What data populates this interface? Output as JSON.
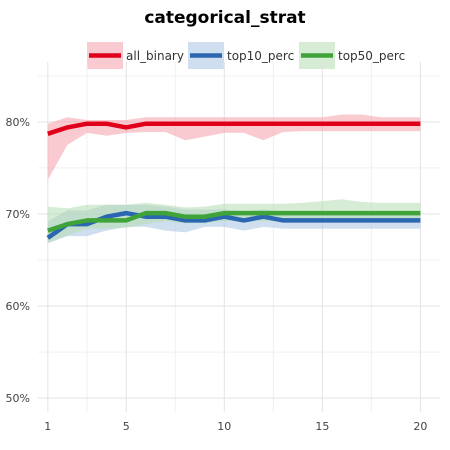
{
  "chart_data": {
    "type": "line",
    "title": "categorical_strat",
    "xlabel": "",
    "ylabel": "",
    "x": [
      1,
      2,
      3,
      4,
      5,
      6,
      7,
      8,
      9,
      10,
      11,
      12,
      13,
      14,
      15,
      16,
      17,
      18,
      19,
      20
    ],
    "xticks": [
      1,
      5,
      10,
      15,
      20
    ],
    "xlim": [
      0.5,
      21
    ],
    "ylim": [
      48.5,
      86.5
    ],
    "yticks": [
      50,
      60,
      70,
      80
    ],
    "ytick_labels": [
      "50%",
      "60%",
      "70%",
      "80%"
    ],
    "grid": true,
    "legend_position": "top",
    "series": [
      {
        "name": "all_binary",
        "color": "#e0001b",
        "band_color": "#f4a0aa",
        "values": [
          78.7,
          79.4,
          79.8,
          79.8,
          79.4,
          79.8,
          79.8,
          79.8,
          79.8,
          79.8,
          79.8,
          79.8,
          79.8,
          79.8,
          79.8,
          79.8,
          79.8,
          79.8,
          79.8,
          79.8
        ],
        "lower": [
          73.7,
          77.5,
          78.8,
          78.5,
          78.8,
          78.9,
          78.9,
          78.0,
          78.4,
          78.8,
          78.8,
          78.0,
          78.9,
          79.0,
          79.0,
          79.0,
          79.0,
          79.0,
          79.0,
          79.0
        ],
        "upper": [
          79.8,
          80.5,
          80.2,
          80.2,
          80.2,
          80.5,
          80.5,
          80.5,
          80.5,
          80.5,
          80.5,
          80.5,
          80.5,
          80.5,
          80.5,
          80.8,
          80.8,
          80.5,
          80.5,
          80.5
        ]
      },
      {
        "name": "top10_perc",
        "color": "#2b66b0",
        "band_color": "#a9c4e4",
        "values": [
          67.4,
          68.9,
          68.9,
          69.7,
          70.1,
          69.7,
          69.7,
          69.3,
          69.3,
          69.7,
          69.3,
          69.7,
          69.3,
          69.3,
          69.3,
          69.3,
          69.3,
          69.3,
          69.3,
          69.3
        ],
        "lower": [
          66.8,
          67.6,
          67.6,
          68.2,
          68.6,
          68.6,
          68.2,
          68.0,
          68.6,
          68.6,
          68.2,
          68.6,
          68.4,
          68.4,
          68.4,
          68.4,
          68.4,
          68.4,
          68.4,
          68.4
        ],
        "upper": [
          69.2,
          70.4,
          70.4,
          71.0,
          71.0,
          71.0,
          70.8,
          70.5,
          70.5,
          70.5,
          70.3,
          70.5,
          70.3,
          70.3,
          70.3,
          70.3,
          70.3,
          70.3,
          70.3,
          70.3
        ]
      },
      {
        "name": "top50_perc",
        "color": "#3fa33a",
        "band_color": "#b4dcb0",
        "values": [
          68.2,
          68.9,
          69.3,
          69.3,
          69.3,
          70.1,
          70.1,
          69.7,
          69.7,
          70.1,
          70.1,
          70.1,
          70.1,
          70.1,
          70.1,
          70.1,
          70.1,
          70.1,
          70.1,
          70.1
        ],
        "lower": [
          66.9,
          67.7,
          68.4,
          68.4,
          68.5,
          68.9,
          69.2,
          69.0,
          69.0,
          69.2,
          69.2,
          69.2,
          69.2,
          69.2,
          69.2,
          69.2,
          69.2,
          69.2,
          69.2,
          69.2
        ],
        "upper": [
          70.8,
          70.6,
          71.0,
          71.0,
          71.0,
          71.2,
          71.0,
          70.7,
          70.8,
          71.1,
          71.1,
          71.1,
          71.1,
          71.2,
          71.4,
          71.6,
          71.3,
          71.2,
          71.2,
          71.2
        ]
      }
    ]
  }
}
